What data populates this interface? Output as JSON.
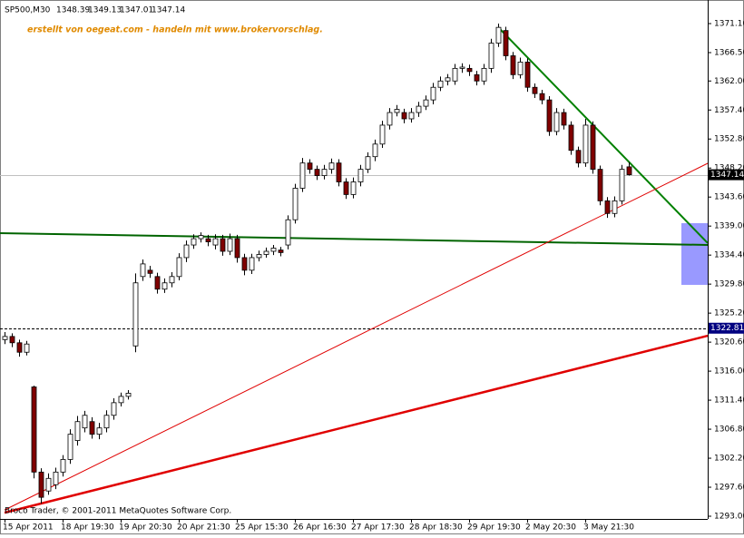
{
  "chart_data": {
    "type": "candlestick",
    "symbol": "SP500,M30",
    "watermark": "erstellt von oegeat.com - handeln mit www.brokervorschlag.",
    "copyright": "Broco Trader, © 2001-2011 MetaQuotes Software Corp.",
    "categories": [
      "15 Apr 2011",
      null,
      null,
      null,
      null,
      null,
      null,
      null,
      "18 Apr 19:30",
      null,
      null,
      null,
      null,
      null,
      null,
      null,
      "19 Apr 20:30",
      null,
      null,
      null,
      null,
      null,
      null,
      null,
      "20 Apr 21:30",
      null,
      null,
      null,
      null,
      null,
      null,
      null,
      "25 Apr 15:30",
      null,
      null,
      null,
      null,
      null,
      null,
      null,
      "26 Apr 16:30",
      null,
      null,
      null,
      null,
      null,
      null,
      null,
      "27 Apr 17:30",
      null,
      null,
      null,
      null,
      null,
      null,
      null,
      "28 Apr 18:30",
      null,
      null,
      null,
      null,
      null,
      null,
      null,
      "29 Apr 19:30",
      null,
      null,
      null,
      null,
      null,
      null,
      null,
      "2 May 20:30",
      null,
      null,
      null,
      null,
      null,
      null,
      null,
      "3 May 21:30",
      null,
      null,
      null,
      null,
      null,
      null
    ],
    "open": [
      1321,
      1321.5,
      1320.5,
      1319,
      1313.5,
      1300,
      1297,
      1298,
      1300,
      1302,
      1305,
      1307,
      1308,
      1306,
      1307,
      1309,
      1311,
      1312,
      1320,
      1331,
      1332,
      1331,
      1329,
      1330,
      1331,
      1334,
      1336,
      1337,
      1337,
      1336,
      1337,
      1335,
      1337,
      1334,
      1332,
      1334,
      1334.5,
      1335,
      1335.2,
      1336,
      1340,
      1345,
      1349,
      1348,
      1347,
      1348,
      1349,
      1346,
      1344,
      1346,
      1348,
      1350,
      1352,
      1355,
      1357,
      1357,
      1356,
      1357,
      1358,
      1359,
      1361,
      1362,
      1362,
      1364,
      1364,
      1363,
      1362,
      1364,
      1368,
      1370,
      1366,
      1363,
      1365,
      1361,
      1360,
      1359,
      1354,
      1357,
      1355,
      1351,
      1349,
      1355,
      1348,
      1343,
      1341,
      1343,
      1348.39
    ],
    "high": [
      1322.2,
      1322,
      1321,
      1320.8,
      1313.7,
      1300.6,
      1299.8,
      1300.7,
      1302.7,
      1306.8,
      1308.9,
      1309.7,
      1308.7,
      1307.8,
      1309.8,
      1311.7,
      1312.6,
      1313,
      1331.5,
      1333.7,
      1332.7,
      1331.6,
      1330.7,
      1331.7,
      1334.7,
      1336.7,
      1337.7,
      1338,
      1337.6,
      1337.7,
      1337.6,
      1337.8,
      1337.6,
      1334.6,
      1334.6,
      1335.1,
      1335.6,
      1336,
      1335.7,
      1340.7,
      1345.7,
      1349.8,
      1349.6,
      1348.6,
      1348.7,
      1349.7,
      1349.6,
      1346.6,
      1346.7,
      1348.7,
      1350.7,
      1352.7,
      1355.7,
      1357.7,
      1358.2,
      1357.6,
      1357.7,
      1358.7,
      1359.7,
      1361.7,
      1362.7,
      1363.1,
      1364.7,
      1364.8,
      1364.6,
      1363.6,
      1364.7,
      1368.7,
      1371.1,
      1370.6,
      1366.6,
      1365.7,
      1365.6,
      1361.6,
      1360.6,
      1359.6,
      1357.7,
      1357.6,
      1355.6,
      1351.6,
      1356,
      1355.6,
      1348.6,
      1343.6,
      1343.7,
      1348.7,
      1349.13
    ],
    "low": [
      1320.3,
      1319.8,
      1318.3,
      1318.5,
      1299,
      1295,
      1296.4,
      1297.3,
      1299.3,
      1301.3,
      1304.2,
      1306.3,
      1305.3,
      1305.2,
      1306.3,
      1308.3,
      1310.4,
      1311.5,
      1319,
      1330.3,
      1330.8,
      1328.3,
      1328.4,
      1329.3,
      1330.4,
      1333.3,
      1335.4,
      1336.4,
      1335.8,
      1335.3,
      1334.3,
      1334.4,
      1333.2,
      1331.2,
      1331.4,
      1333.4,
      1334,
      1334.4,
      1334.2,
      1335.3,
      1339.4,
      1344.4,
      1347.3,
      1346.3,
      1346.4,
      1347.3,
      1345.3,
      1343.3,
      1343.4,
      1345.3,
      1347.4,
      1349.3,
      1351.4,
      1354.3,
      1356.4,
      1355.3,
      1355.4,
      1356.3,
      1357.4,
      1358.3,
      1360.4,
      1361.3,
      1361.4,
      1363.3,
      1362.8,
      1361.3,
      1361.4,
      1363.3,
      1367.4,
      1365.3,
      1362.3,
      1362.4,
      1360.3,
      1359.3,
      1358.3,
      1353.3,
      1353.4,
      1354.3,
      1350.3,
      1348.3,
      1348.4,
      1347.3,
      1342.3,
      1340.3,
      1340.4,
      1342.4,
      1347.01
    ],
    "close": [
      1321.5,
      1320.5,
      1319,
      1320.3,
      1300,
      1296,
      1299,
      1300,
      1302,
      1306,
      1308,
      1309,
      1306,
      1307,
      1309,
      1311,
      1312,
      1312.5,
      1330,
      1333,
      1331.5,
      1329,
      1330,
      1331,
      1334,
      1336,
      1337,
      1337.5,
      1336.5,
      1337,
      1335,
      1337,
      1334,
      1332,
      1334,
      1334.5,
      1335,
      1335.5,
      1334.8,
      1340,
      1345,
      1349,
      1348,
      1347,
      1348,
      1349,
      1346,
      1344,
      1346,
      1348,
      1350,
      1352,
      1355,
      1357,
      1357.5,
      1356,
      1357,
      1358,
      1359,
      1361,
      1362,
      1362.5,
      1364,
      1364.2,
      1363.5,
      1362,
      1364,
      1368,
      1370.5,
      1366,
      1363,
      1365,
      1361,
      1360,
      1359,
      1354,
      1357,
      1355,
      1351,
      1349,
      1355,
      1348,
      1343,
      1341,
      1343,
      1348,
      1347.14
    ],
    "up_color": "#ffffff",
    "down_color": "#800000",
    "ylim": [
      1292.57,
      1374.84
    ],
    "yticks": [
      {
        "value": 1371.1,
        "label": "1371.10"
      },
      {
        "value": 1366.5,
        "label": "1366.50"
      },
      {
        "value": 1362,
        "label": "1362.00"
      },
      {
        "value": 1357.4,
        "label": "1357.40"
      },
      {
        "value": 1352.8,
        "label": "1352.80"
      },
      {
        "value": 1348.2,
        "label": "1348.20"
      },
      {
        "value": 1343.6,
        "label": "1343.60"
      },
      {
        "value": 1339,
        "label": "1339.00"
      },
      {
        "value": 1334.4,
        "label": "1334.40"
      },
      {
        "value": 1329.8,
        "label": "1329.80"
      },
      {
        "value": 1325.2,
        "label": "1325.20"
      },
      {
        "value": 1320.6,
        "label": "1320.60"
      },
      {
        "value": 1316,
        "label": "1316.00"
      },
      {
        "value": 1311.4,
        "label": "1311.40"
      },
      {
        "value": 1306.8,
        "label": "1306.80"
      },
      {
        "value": 1302.2,
        "label": "1302.20"
      },
      {
        "value": 1297.6,
        "label": "1297.60"
      },
      {
        "value": 1293,
        "label": "1293.00"
      }
    ],
    "price_lines": [
      {
        "value": 1347.14,
        "color": "#c0c0c0",
        "box_color": "#000000",
        "dashed": false
      },
      {
        "value": 1322.81,
        "color": "#000000",
        "box_color": "#000080",
        "dashed": true
      }
    ],
    "trendlines": [
      {
        "color": "#008000",
        "width": 2,
        "from": [
          68,
          1370.53
        ],
        "to": [
          96.875,
          1336.3
        ]
      },
      {
        "color": "#006400",
        "width": 2,
        "from": [
          -0.625,
          1337.88
        ],
        "to": [
          96.875,
          1336.01
        ]
      },
      {
        "color": "#e00000",
        "width": 1,
        "from": [
          0,
          1293.99
        ],
        "to": [
          96.875,
          1348.95
        ]
      },
      {
        "color": "#e00000",
        "width": 2.5,
        "from": [
          0,
          1293.56
        ],
        "to": [
          96.875,
          1321.61
        ]
      }
    ],
    "rectangle": {
      "color": "#9999ff",
      "x": [
        93.25,
        96.875
      ],
      "y": [
        1329.68,
        1339.46
      ]
    }
  }
}
